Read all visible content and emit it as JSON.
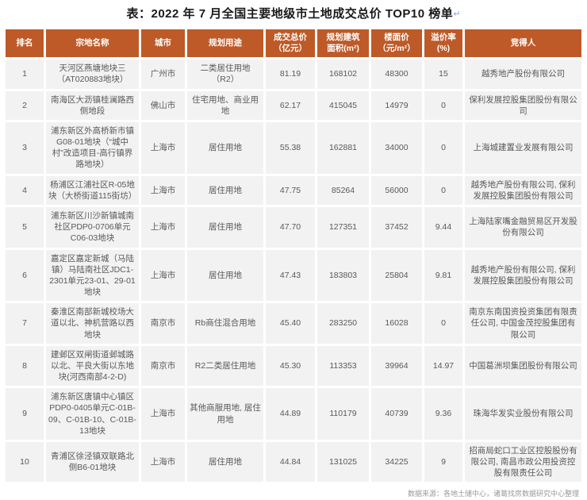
{
  "title": "表：2022 年 7 月全国主要地级市土地成交总价 TOP10 榜单",
  "title_return_mark": "↵",
  "colors": {
    "header_bg": "#BE5A28",
    "header_text": "#FFFFFF",
    "cell_bg": "#F2F2F2",
    "cell_text": "#595959",
    "footer_text": "#9A9A9A"
  },
  "table": {
    "column_keys": [
      "rank",
      "parcel-name",
      "city",
      "planned-use",
      "total-price",
      "planned-area",
      "floor-price",
      "premium-rate",
      "winner"
    ],
    "headers": [
      "排名",
      "宗地名称",
      "城市",
      "规划用途",
      "成交总价\n（亿元）",
      "规划建筑\n面积(m²)",
      "楼面价\n（元/m²）",
      "溢价率\n(%)",
      "竞得人"
    ],
    "rows": [
      [
        "1",
        "天河区燕塘地块三（AT020883地块）",
        "广州市",
        "二类居住用地（R2）",
        "81.19",
        "168102",
        "48300",
        "15",
        "越秀地产股份有限公司"
      ],
      [
        "2",
        "南海区大沥镇桂澜路西侧地段",
        "佛山市",
        "住宅用地、商业用地",
        "62.17",
        "415045",
        "14979",
        "0",
        "保利发展控股集团股份有限公司"
      ],
      [
        "3",
        "浦东新区外高桥新市镇G08-01地块（“城中村”改造项目-高行镇界路地块）",
        "上海市",
        "居住用地",
        "55.38",
        "162881",
        "34000",
        "0",
        "上海城建置业发展有限公司"
      ],
      [
        "4",
        "杨浦区江浦社区R-05地块（大桥街道115街坊）",
        "上海市",
        "居住用地",
        "47.75",
        "85264",
        "56000",
        "0",
        "越秀地产股份有限公司, 保利发展控股集团股份有限公司"
      ],
      [
        "5",
        "浦东新区川沙新镇城南社区PDP0-0706单元C06-03地块",
        "上海市",
        "居住用地",
        "47.70",
        "127351",
        "37452",
        "9.44",
        "上海陆家嘴金融贸易区开发股份有限公司"
      ],
      [
        "6",
        "嘉定区嘉定新城（马陆镇）马陆南社区JDC1-2301单元23-01、29-01地块",
        "上海市",
        "居住用地",
        "47.43",
        "183803",
        "25804",
        "9.81",
        "越秀地产股份有限公司, 保利发展控股集团股份有限公司"
      ],
      [
        "7",
        "秦淮区南部新城校场大道以北、神机营路以西地块",
        "南京市",
        "Rb商住混合用地",
        "45.40",
        "283250",
        "16028",
        "0",
        "南京东南国资投资集团有限责任公司, 中国金茂控股集团有限公司"
      ],
      [
        "8",
        "建邺区双闸街道邺城路以北、平良大街以东地块(河西南部4-2-D)",
        "南京市",
        "R2二类居住用地",
        "45.30",
        "113353",
        "39964",
        "14.97",
        "中国葛洲坝集团股份有限公司"
      ],
      [
        "9",
        "浦东新区唐镇中心镇区PDP0-0405单元C-01B-09、C-01B-10、C-01B-13地块",
        "上海市",
        "其他商服用地, 居住用地",
        "44.89",
        "110179",
        "40739",
        "9.36",
        "珠海华发实业股份有限公司"
      ],
      [
        "10",
        "青浦区徐泾镇双联路北侧B6-01地块",
        "上海市",
        "居住用地",
        "44.84",
        "131025",
        "34225",
        "9",
        "招商局蛇口工业区控股股份有限公司, 南昌市政公用投资控股有限责任公司"
      ]
    ]
  },
  "footer": {
    "source_note": "数据来源：各地土储中心，诸葛找房数据研究中心整理"
  }
}
